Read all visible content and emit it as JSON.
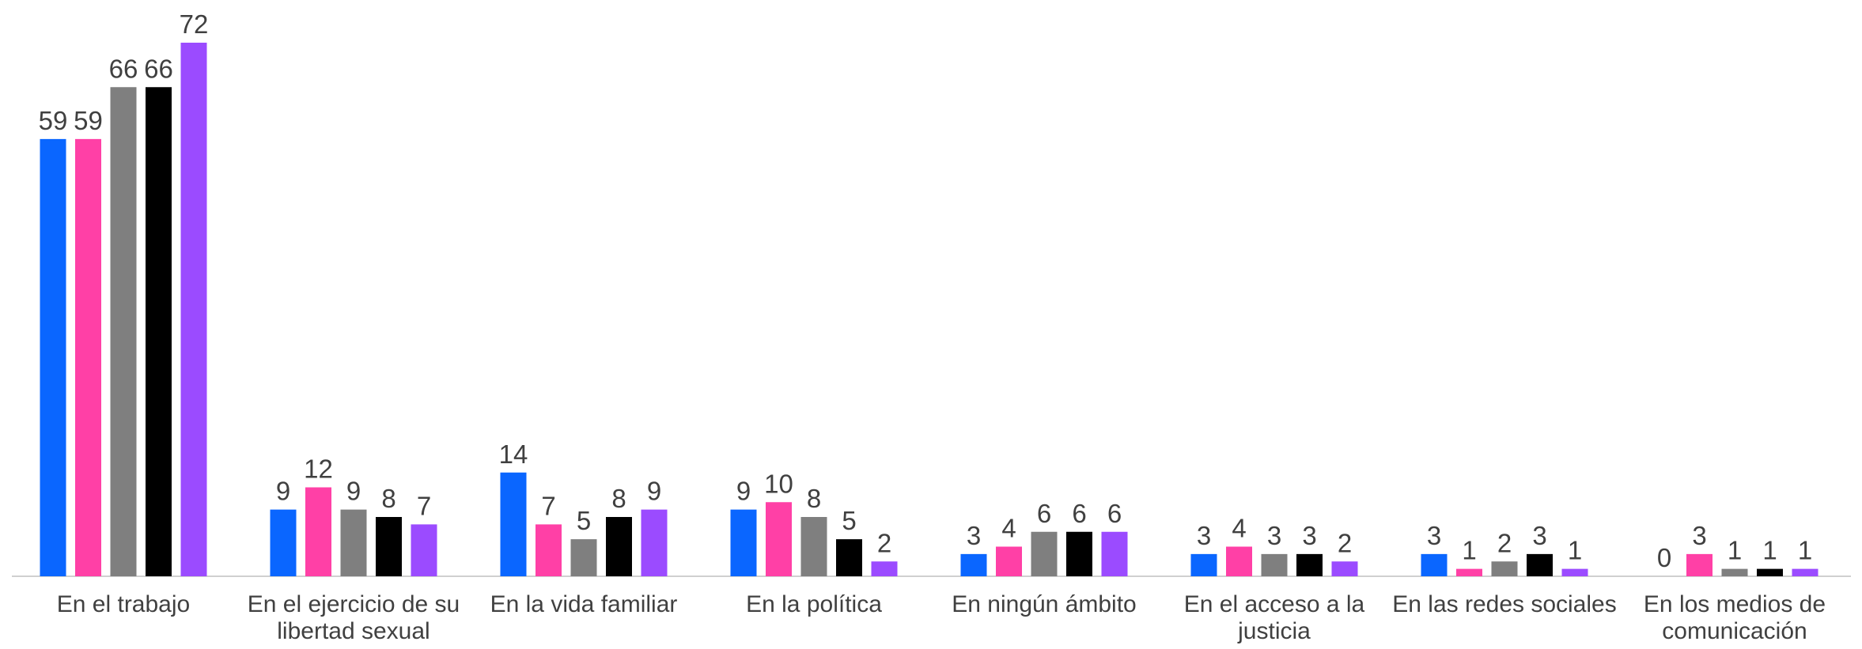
{
  "chart_data": {
    "type": "bar",
    "categories": [
      "En el trabajo",
      "En el ejercicio de su libertad sexual",
      "En la vida familiar",
      "En la política",
      "En ningún ámbito",
      "En el acceso a la justicia",
      "En las redes sociales",
      "En los medios de comunicación"
    ],
    "series": [
      {
        "color": "#0a66ff",
        "values": [
          59,
          9,
          14,
          9,
          3,
          3,
          3,
          0
        ]
      },
      {
        "color": "#ff40a6",
        "values": [
          59,
          12,
          7,
          10,
          4,
          4,
          1,
          3
        ]
      },
      {
        "color": "#7f7f7f",
        "values": [
          66,
          9,
          5,
          8,
          6,
          3,
          2,
          1
        ]
      },
      {
        "color": "#000000",
        "values": [
          66,
          8,
          8,
          5,
          6,
          3,
          3,
          1
        ]
      },
      {
        "color": "#9b4bff",
        "values": [
          72,
          7,
          9,
          2,
          6,
          2,
          1,
          1
        ]
      }
    ]
  }
}
